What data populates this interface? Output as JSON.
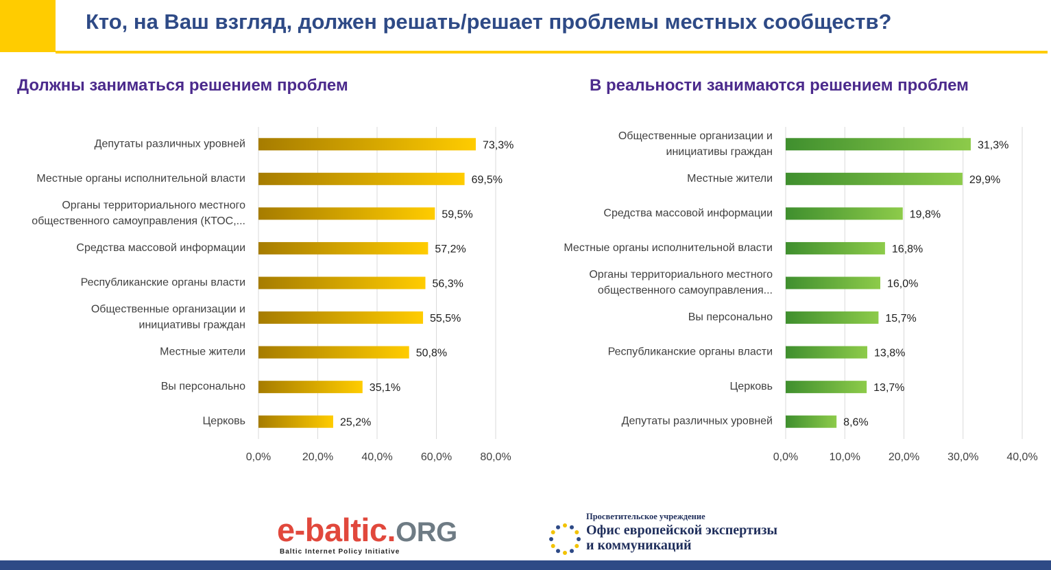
{
  "page_title": "Кто, на Ваш взгляд, должен решать/решает проблемы местных сообществ?",
  "colors": {
    "accent": "#FFCC00",
    "title": "#2E4A86",
    "subtitle": "#4B2A8C",
    "bottom_bar": "#2E4A86"
  },
  "chart_data": [
    {
      "type": "bar",
      "orientation": "horizontal",
      "title": "Должны заниматься решением проблем",
      "categories": [
        [
          "Депутаты различных уровней"
        ],
        [
          "Местные органы исполнительной власти"
        ],
        [
          "Органы территориального местного",
          "общественного самоуправления (КТОС,..."
        ],
        [
          "Средства массовой информации"
        ],
        [
          "Республиканские органы власти"
        ],
        [
          "Общественные организации и",
          "инициативы граждан"
        ],
        [
          "Местные жители"
        ],
        [
          "Вы персонально"
        ],
        [
          "Церковь"
        ]
      ],
      "values": [
        73.3,
        69.5,
        59.5,
        57.2,
        56.3,
        55.5,
        50.8,
        35.1,
        25.2
      ],
      "value_labels": [
        "73,3%",
        "69,5%",
        "59,5%",
        "57,2%",
        "56,3%",
        "55,5%",
        "50,8%",
        "35,1%",
        "25,2%"
      ],
      "xlim": [
        0,
        80
      ],
      "ticks": [
        0,
        20,
        40,
        60,
        80
      ],
      "tick_labels": [
        "0,0%",
        "20,0%",
        "40,0%",
        "60,0%",
        "80,0%"
      ],
      "grid": true,
      "bar_color_from": "#A67C00",
      "bar_color_to": "#FFCC00"
    },
    {
      "type": "bar",
      "orientation": "horizontal",
      "title": "В реальности занимаются решением проблем",
      "categories": [
        [
          "Общественные организации и",
          "инициативы граждан"
        ],
        [
          "Местные жители"
        ],
        [
          "Средства массовой информации"
        ],
        [
          "Местные органы исполнительной власти"
        ],
        [
          "Органы территориального местного",
          "общественного самоуправления..."
        ],
        [
          "Вы персонально"
        ],
        [
          "Республиканские органы власти"
        ],
        [
          "Церковь"
        ],
        [
          "Депутаты различных уровней"
        ]
      ],
      "values": [
        31.3,
        29.9,
        19.8,
        16.8,
        16.0,
        15.7,
        13.8,
        13.7,
        8.6
      ],
      "value_labels": [
        "31,3%",
        "29,9%",
        "19,8%",
        "16,8%",
        "16,0%",
        "15,7%",
        "13,8%",
        "13,7%",
        "8,6%"
      ],
      "xlim": [
        0,
        40
      ],
      "ticks": [
        0,
        10,
        20,
        30,
        40
      ],
      "tick_labels": [
        "0,0%",
        "10,0%",
        "20,0%",
        "30,0%",
        "40,0%"
      ],
      "grid": true,
      "bar_color_from": "#3F8F2E",
      "bar_color_to": "#8DCB4A"
    }
  ],
  "footer": {
    "ebaltic_main": "e-baltic.",
    "ebaltic_org": "ORG",
    "ebaltic_sub": "Baltic Internet Policy Initiative",
    "office_pre": "Просветительское учреждение",
    "office_line1": "Офис европейской экспертизы",
    "office_line2": "и коммуникаций"
  }
}
